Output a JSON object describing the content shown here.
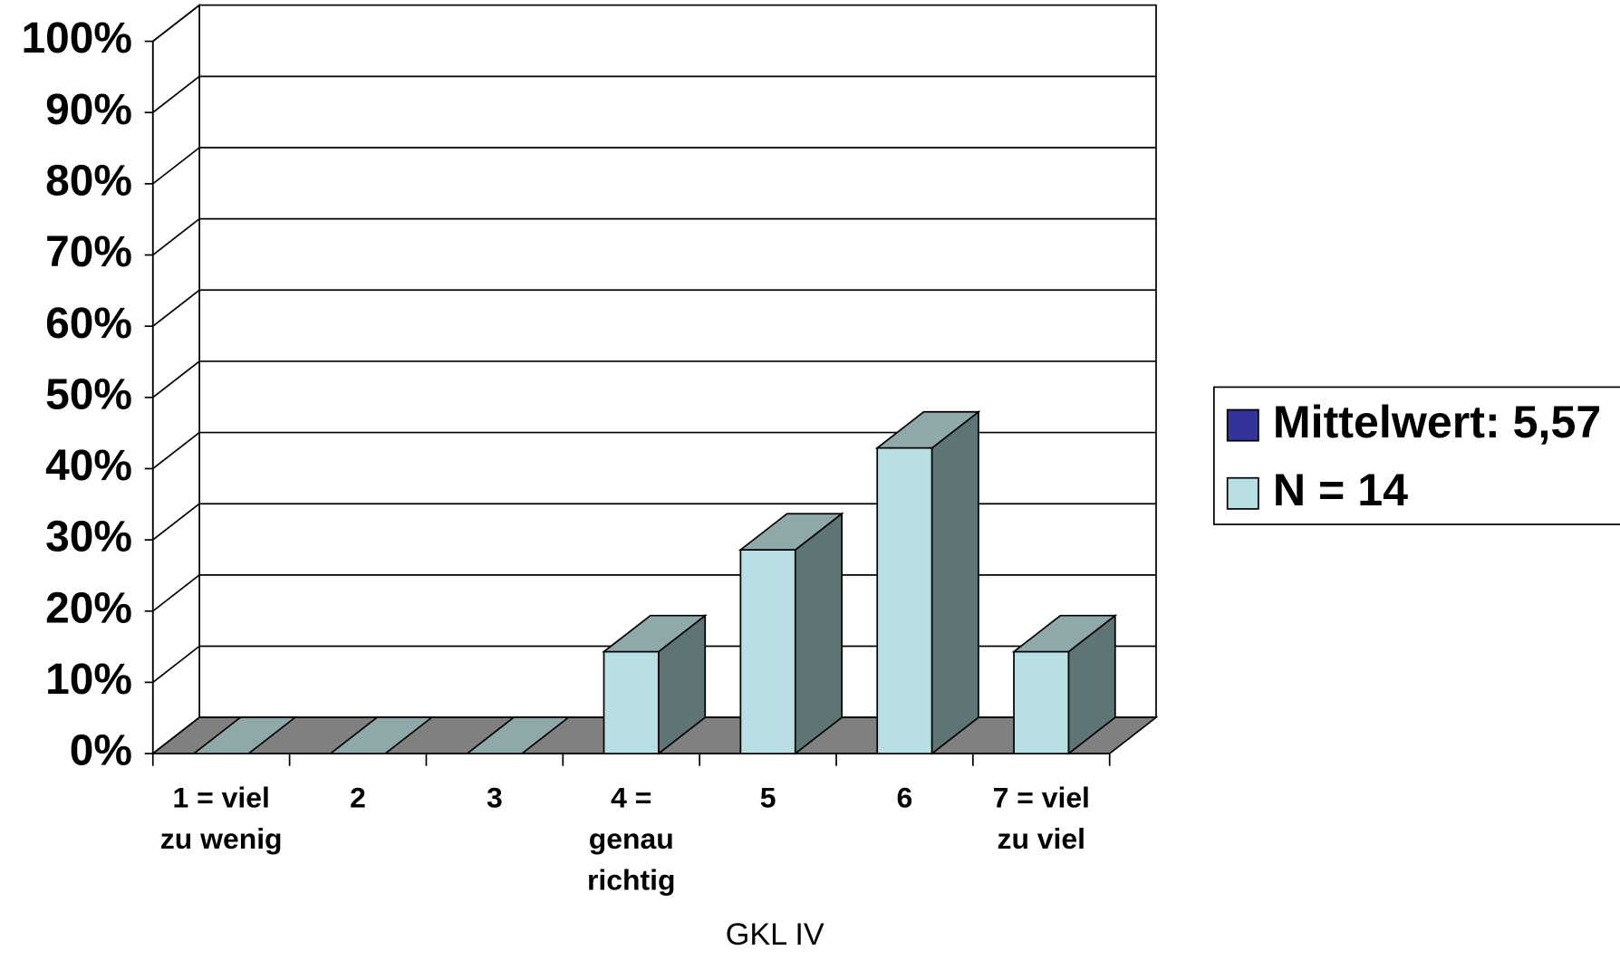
{
  "chart_data": {
    "type": "bar3d",
    "x_label": "GKL IV",
    "categories": [
      "1 = viel\nzu wenig",
      "2",
      "3",
      "4 =\ngenau\nrichtig",
      "5",
      "6",
      "7 = viel\nzu viel"
    ],
    "series": [
      {
        "name": "Mittelwert: 5,57",
        "color": "#333399",
        "values": [
          null,
          null,
          null,
          null,
          null,
          null,
          null
        ]
      },
      {
        "name": "N = 14",
        "color": "#b8dfe3",
        "values": [
          0,
          0,
          0,
          14.3,
          28.6,
          42.9,
          14.3
        ]
      }
    ],
    "ylim": [
      0,
      100
    ],
    "yticks": [
      {
        "value": 0,
        "label": "0%"
      },
      {
        "value": 10,
        "label": "10%"
      },
      {
        "value": 20,
        "label": "20%"
      },
      {
        "value": 30,
        "label": "30%"
      },
      {
        "value": 40,
        "label": "40%"
      },
      {
        "value": 50,
        "label": "50%"
      },
      {
        "value": 60,
        "label": "60%"
      },
      {
        "value": 70,
        "label": "70%"
      },
      {
        "value": 80,
        "label": "80%"
      },
      {
        "value": 90,
        "label": "90%"
      },
      {
        "value": 100,
        "label": "100%"
      }
    ],
    "grid": true,
    "legend": "right"
  }
}
